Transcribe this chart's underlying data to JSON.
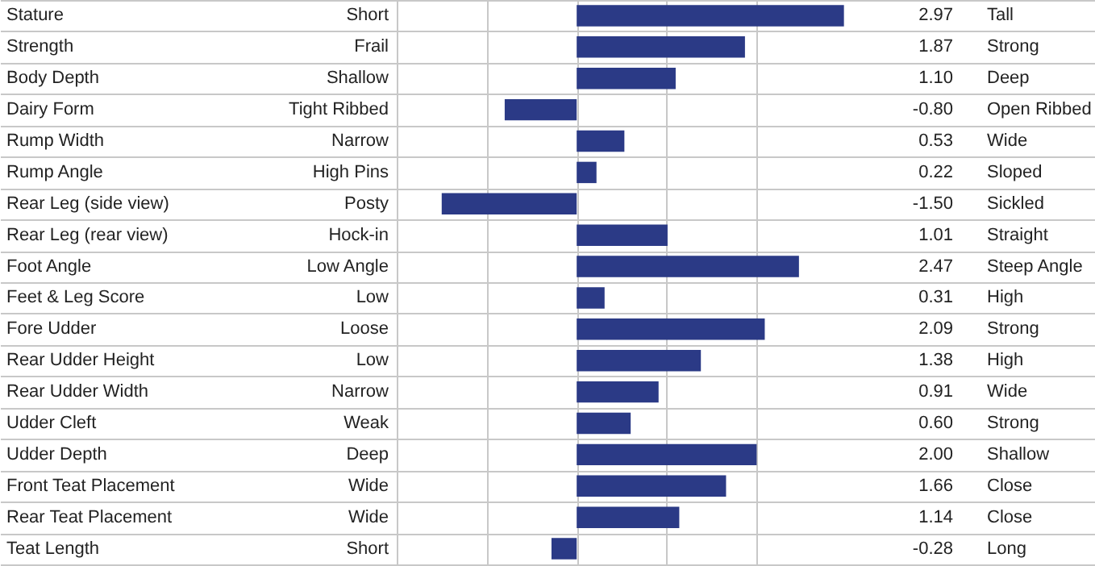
{
  "chart_data": {
    "type": "bar",
    "orientation": "horizontal",
    "categories": [
      "Stature",
      "Strength",
      "Body Depth",
      "Dairy Form",
      "Rump Width",
      "Rump Angle",
      "Rear Leg (side view)",
      "Rear Leg (rear view)",
      "Foot Angle",
      "Feet & Leg Score",
      "Fore Udder",
      "Rear Udder Height",
      "Rear Udder Width",
      "Udder Cleft",
      "Udder Depth",
      "Front Teat Placement",
      "Rear Teat Placement",
      "Teat Length"
    ],
    "values": [
      2.97,
      1.87,
      1.1,
      -0.8,
      0.53,
      0.22,
      -1.5,
      1.01,
      2.47,
      0.31,
      2.09,
      1.38,
      0.91,
      0.6,
      2.0,
      1.66,
      1.14,
      -0.28
    ],
    "value_labels": [
      "2.97",
      "1.87",
      "1.10",
      "-0.80",
      "0.53",
      "0.22",
      "-1.50",
      "1.01",
      "2.47",
      "0.31",
      "2.09",
      "1.38",
      "0.91",
      "0.60",
      "2.00",
      "1.66",
      "1.14",
      "-0.28"
    ],
    "color": "#2b3a86",
    "grid": true,
    "tick_labels": "y",
    "xlim": [
      -2,
      3
    ],
    "xticks": [
      {
        "value": -2,
        "label": null
      },
      {
        "value": -1,
        "label": null
      },
      {
        "value": 0,
        "label": null
      },
      {
        "value": 1,
        "label": null
      },
      {
        "value": 2,
        "label": null
      }
    ],
    "annotations": [
      "Short",
      "Tall",
      "Frail",
      "Strong",
      "Shallow",
      "Deep",
      "Tight Ribbed",
      "Open Ribbed",
      "Narrow",
      "Wide",
      "High Pins",
      "Sloped",
      "Posty",
      "Sickled",
      "Hock-in",
      "Straight",
      "Low Angle",
      "Steep Angle",
      "Low",
      "High",
      "Loose",
      "Strong",
      "Low",
      "High",
      "Narrow",
      "Wide",
      "Weak",
      "Strong",
      "Deep",
      "Shallow",
      "Wide",
      "Close",
      "Wide",
      "Close",
      "Short",
      "Long"
    ]
  }
}
